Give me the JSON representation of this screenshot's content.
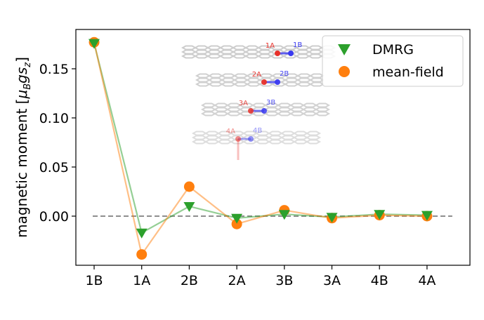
{
  "chart_data": {
    "type": "line",
    "title": "",
    "xlabel": "",
    "ylabel": "magnetic moment [μ_B g s_z]",
    "ylabel_main": "magnetic moment [",
    "ylabel_mu": "μ",
    "ylabel_mu_sub": "B",
    "ylabel_g": "g",
    "ylabel_s": "s",
    "ylabel_s_sub": "z",
    "ylabel_close": "]",
    "categories": [
      "1B",
      "1A",
      "2B",
      "2A",
      "3B",
      "3A",
      "4B",
      "4A"
    ],
    "ylim": [
      -0.05,
      0.19
    ],
    "yticks": [
      0.0,
      0.05,
      0.1,
      0.15
    ],
    "ytick_labels": [
      "0.00",
      "0.05",
      "0.10",
      "0.15"
    ],
    "reference_line": {
      "y": 0.0,
      "style": "dashed",
      "color": "#7f7f7f"
    },
    "series": [
      {
        "name": "DMRG",
        "marker": "triangle-down",
        "color": "#2ca02c",
        "values": [
          0.176,
          -0.017,
          0.01,
          -0.002,
          0.002,
          -0.001,
          0.002,
          0.001
        ]
      },
      {
        "name": "mean-field",
        "marker": "circle",
        "color": "#ff7f0e",
        "values": [
          0.177,
          -0.039,
          0.03,
          -0.008,
          0.006,
          -0.002,
          0.001,
          0.0
        ]
      }
    ],
    "legend": {
      "placement": "top-right",
      "entries": [
        "DMRG",
        "mean-field"
      ]
    }
  },
  "inset": {
    "description_labels": [
      "1A",
      "1B",
      "2A",
      "2B",
      "3A",
      "3B",
      "4A",
      "4B"
    ],
    "colors": {
      "A": "#e8302a",
      "B": "#3a3af0",
      "lattice": "#c8c8c8"
    }
  }
}
